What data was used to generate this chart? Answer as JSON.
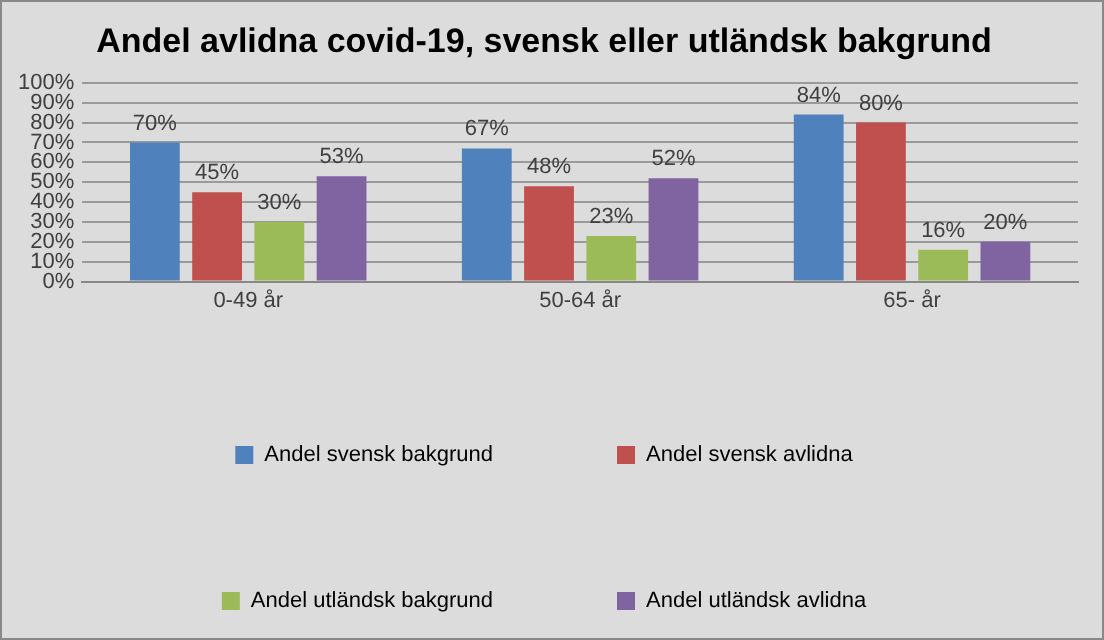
{
  "chart_data": {
    "type": "bar",
    "title": "Andel avlidna covid-19, svensk eller utländsk bakgrund",
    "categories": [
      "0-49 år",
      "50-64 år",
      "65- år"
    ],
    "series": [
      {
        "name": "Andel svensk bakgrund",
        "color": "#4f81bd",
        "values": [
          70,
          67,
          84
        ],
        "value_labels": [
          "70%",
          "67%",
          "84%"
        ]
      },
      {
        "name": "Andel svensk avlidna",
        "color": "#c0504d",
        "values": [
          45,
          48,
          80
        ],
        "value_labels": [
          "45%",
          "48%",
          "80%"
        ]
      },
      {
        "name": "Andel utländsk bakgrund",
        "color": "#9bbb59",
        "values": [
          30,
          23,
          16
        ],
        "value_labels": [
          "30%",
          "23%",
          "16%"
        ]
      },
      {
        "name": "Andel utländsk avlidna",
        "color": "#8064a2",
        "values": [
          53,
          52,
          20
        ],
        "value_labels": [
          "53%",
          "52%",
          "20%"
        ]
      }
    ],
    "ylim": [
      0,
      100
    ],
    "yticks": [
      {
        "value": 0,
        "label": "0%"
      },
      {
        "value": 10,
        "label": "10%"
      },
      {
        "value": 20,
        "label": "20%"
      },
      {
        "value": 30,
        "label": "30%"
      },
      {
        "value": 40,
        "label": "40%"
      },
      {
        "value": 50,
        "label": "50%"
      },
      {
        "value": 60,
        "label": "60%"
      },
      {
        "value": 70,
        "label": "70%"
      },
      {
        "value": 80,
        "label": "80%"
      },
      {
        "value": 90,
        "label": "90%"
      },
      {
        "value": 100,
        "label": "100%"
      }
    ],
    "grid": "y",
    "legend": "bottom"
  }
}
